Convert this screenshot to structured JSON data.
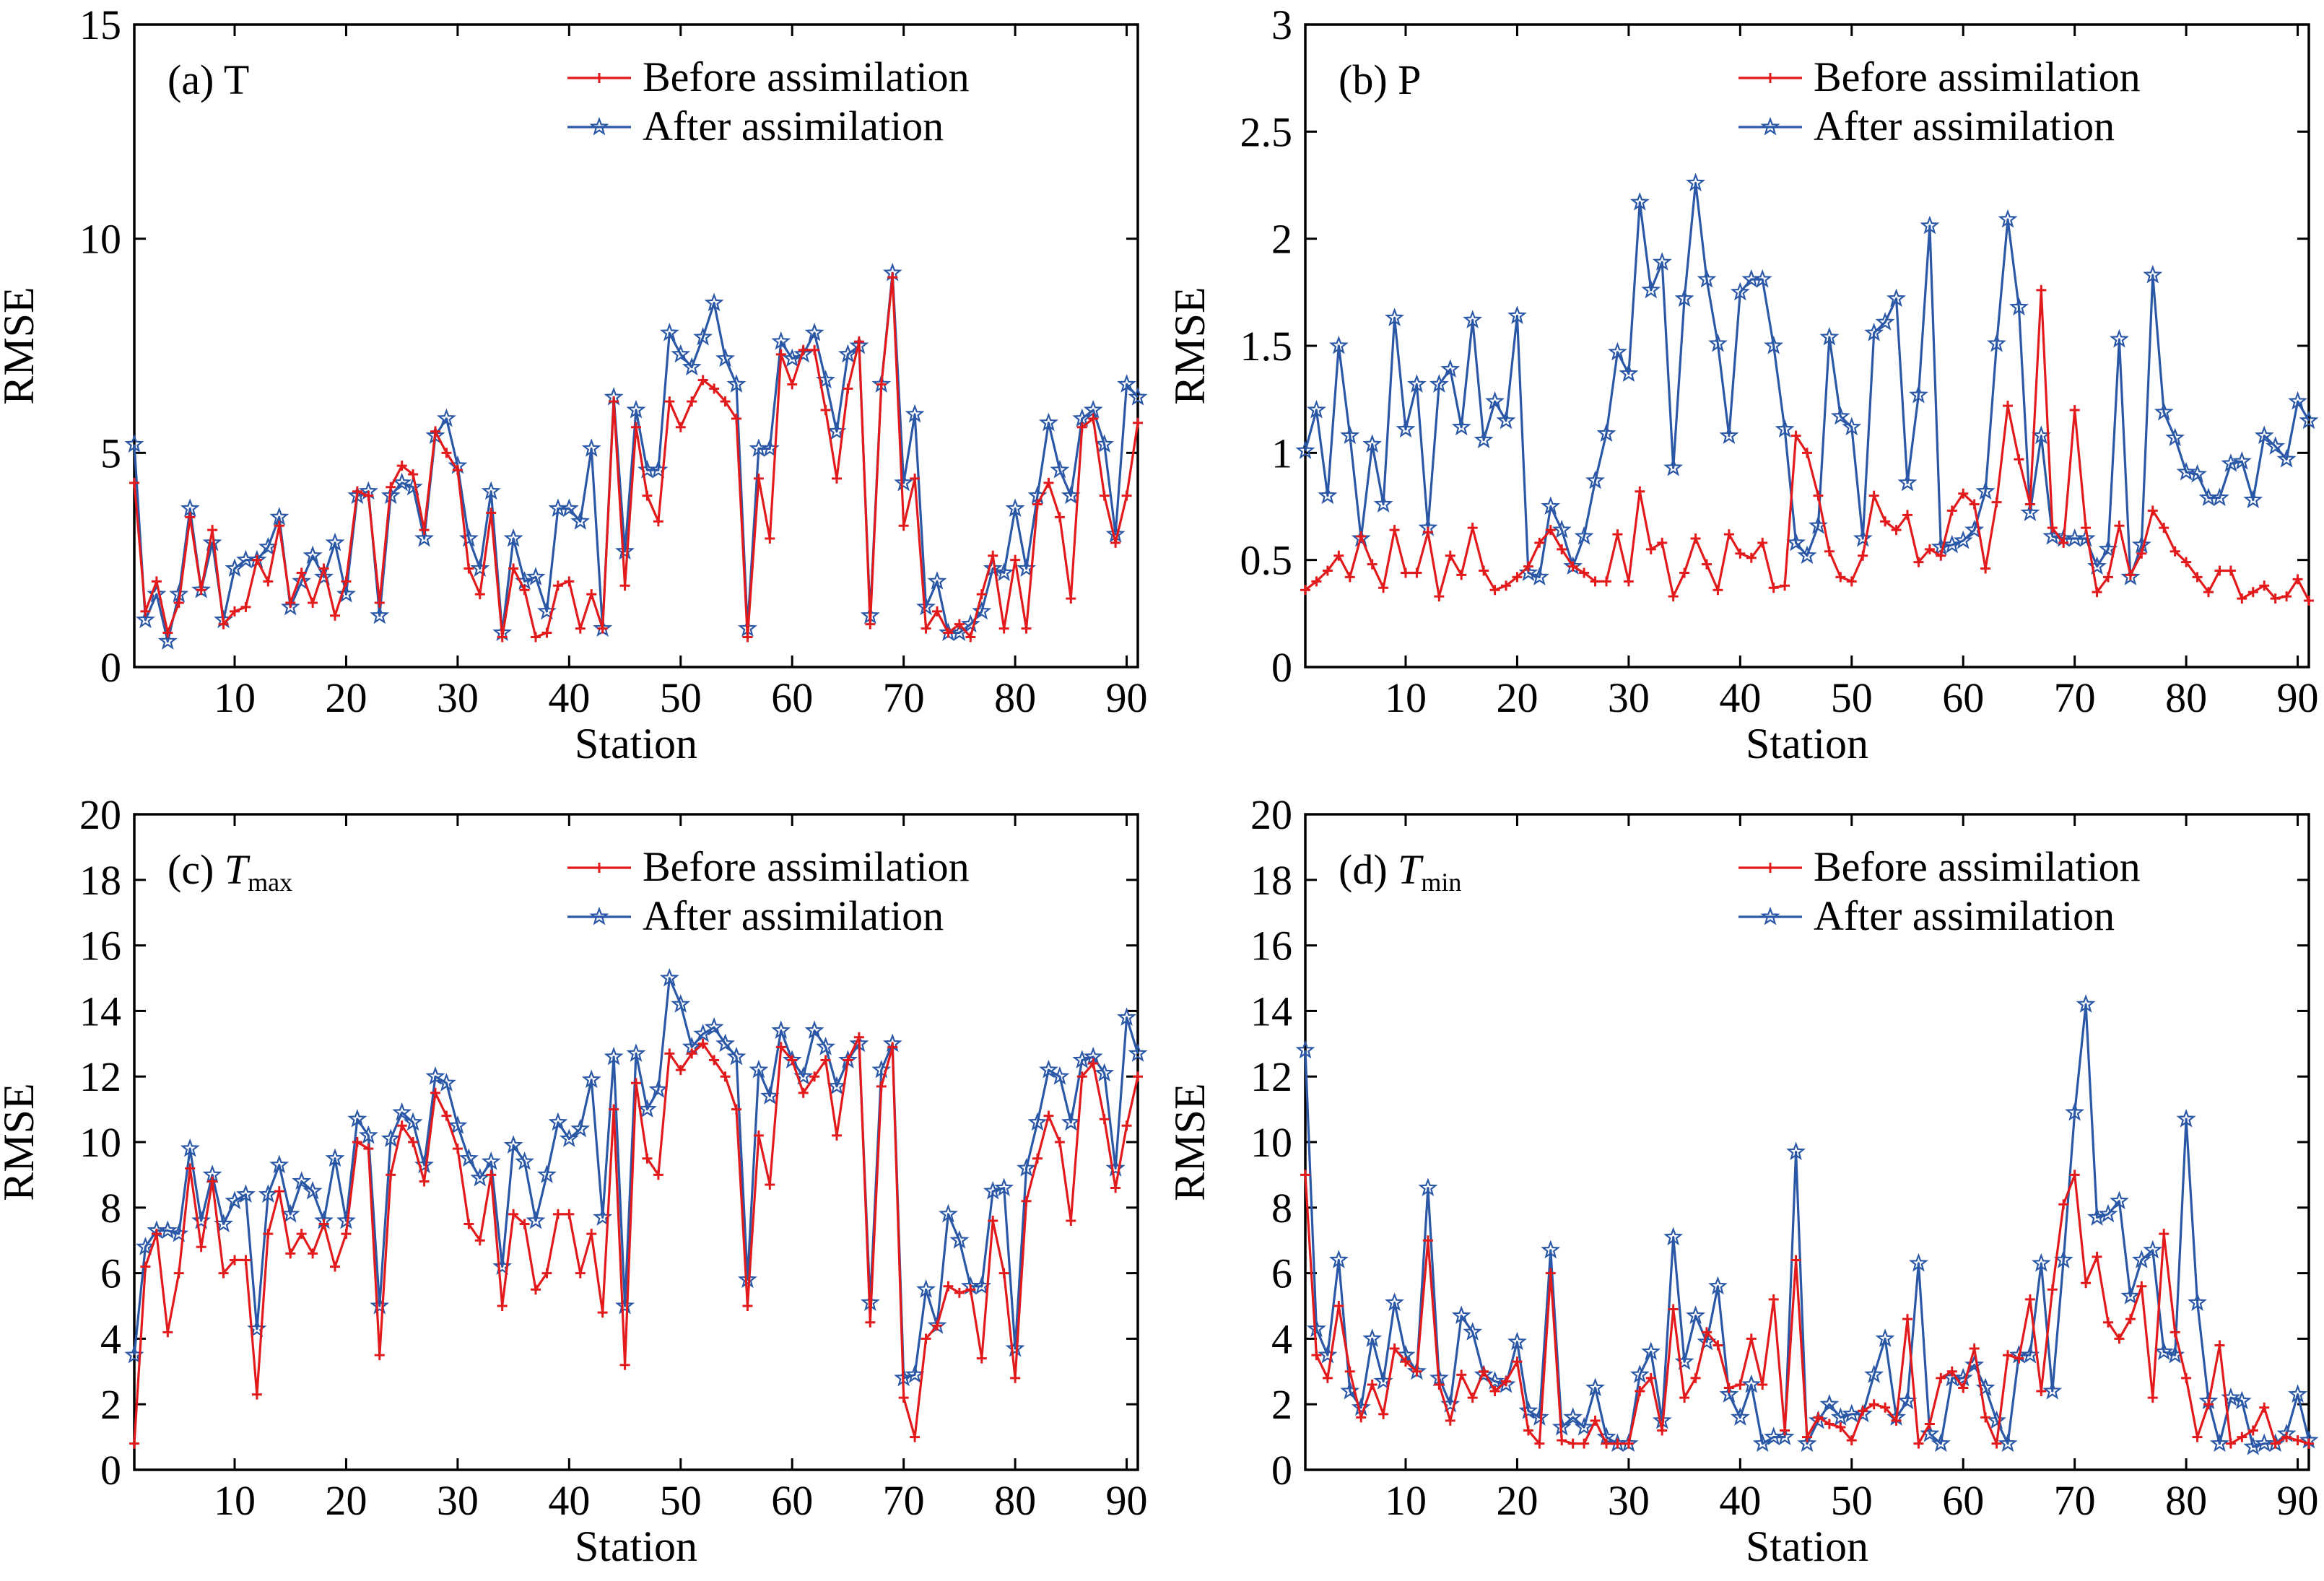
{
  "legend": {
    "before": "Before assimilation",
    "after": "After assimilation"
  },
  "colors": {
    "before": "#e31a1c",
    "after": "#2b58a6"
  },
  "chart_data": [
    {
      "type": "line",
      "panel_label": "(a) T",
      "panel_letter": "(a)",
      "panel_var": "T",
      "panel_sub": "",
      "xlabel": "Station",
      "ylabel": "RMSE",
      "xlim": [
        1,
        91
      ],
      "ylim": [
        0,
        15
      ],
      "x_ticks": [
        10,
        20,
        30,
        40,
        50,
        60,
        70,
        80,
        90
      ],
      "y_ticks": [
        0,
        5,
        10,
        15
      ],
      "y_tick_labels": [
        "0",
        "5",
        "10",
        "15"
      ],
      "legend_position": "top-right",
      "series": [
        {
          "name": "Before assimilation",
          "values": [
            4.3,
            1.3,
            2.0,
            0.8,
            1.5,
            3.5,
            1.8,
            3.2,
            1.0,
            1.3,
            1.4,
            2.5,
            2.0,
            3.3,
            1.5,
            2.2,
            1.5,
            2.3,
            1.2,
            2.0,
            4.1,
            4.0,
            1.5,
            4.2,
            4.7,
            4.5,
            3.2,
            5.5,
            5.0,
            4.6,
            2.3,
            1.7,
            3.6,
            0.7,
            2.3,
            1.8,
            0.7,
            0.8,
            1.9,
            2.0,
            0.9,
            1.7,
            0.9,
            6.2,
            1.9,
            5.6,
            4.0,
            3.4,
            6.2,
            5.6,
            6.2,
            6.7,
            6.5,
            6.2,
            5.8,
            0.7,
            4.4,
            3.0,
            7.3,
            6.6,
            7.4,
            7.4,
            6.0,
            4.4,
            6.5,
            7.6,
            1.0,
            6.6,
            9.1,
            3.3,
            4.4,
            0.9,
            1.3,
            0.8,
            1.0,
            0.7,
            1.7,
            2.6,
            0.9,
            2.5,
            0.9,
            3.8,
            4.3,
            3.5,
            1.6,
            5.6,
            5.8,
            4.0,
            2.9,
            4.0,
            5.7
          ]
        },
        {
          "name": "After assimilation",
          "values": [
            5.2,
            1.1,
            1.7,
            0.6,
            1.7,
            3.7,
            1.8,
            2.9,
            1.1,
            2.3,
            2.5,
            2.5,
            2.8,
            3.5,
            1.4,
            2.0,
            2.6,
            2.1,
            2.9,
            1.7,
            4.0,
            4.1,
            1.2,
            4.0,
            4.3,
            4.2,
            3.0,
            5.4,
            5.8,
            4.7,
            3.0,
            2.3,
            4.1,
            0.8,
            3.0,
            2.0,
            2.1,
            1.3,
            3.7,
            3.7,
            3.4,
            5.1,
            0.9,
            6.3,
            2.7,
            6.0,
            4.6,
            4.6,
            7.8,
            7.3,
            7.0,
            7.7,
            8.5,
            7.2,
            6.6,
            0.9,
            5.1,
            5.1,
            7.6,
            7.2,
            7.3,
            7.8,
            6.7,
            5.5,
            7.3,
            7.5,
            1.2,
            6.6,
            9.2,
            4.3,
            5.9,
            1.4,
            2.0,
            0.8,
            0.8,
            1.0,
            1.3,
            2.3,
            2.2,
            3.7,
            2.3,
            4.0,
            5.7,
            4.6,
            4.0,
            5.8,
            6.0,
            5.2,
            3.1,
            6.6,
            6.3
          ]
        }
      ]
    },
    {
      "type": "line",
      "panel_label": "(b) P",
      "panel_letter": "(b)",
      "panel_var": "P",
      "panel_sub": "",
      "xlabel": "Station",
      "ylabel": "RMSE",
      "xlim": [
        1,
        91
      ],
      "ylim": [
        0,
        3
      ],
      "x_ticks": [
        10,
        20,
        30,
        40,
        50,
        60,
        70,
        80,
        90
      ],
      "y_ticks": [
        0,
        0.5,
        1,
        1.5,
        2,
        2.5,
        3
      ],
      "y_tick_labels": [
        "0",
        "0.5",
        "1",
        "1.5",
        "2",
        "2.5",
        "3"
      ],
      "legend_position": "top-right",
      "series": [
        {
          "name": "Before assimilation",
          "values": [
            0.36,
            0.4,
            0.45,
            0.52,
            0.42,
            0.61,
            0.48,
            0.37,
            0.64,
            0.44,
            0.44,
            0.63,
            0.33,
            0.52,
            0.43,
            0.65,
            0.45,
            0.36,
            0.38,
            0.42,
            0.47,
            0.58,
            0.64,
            0.55,
            0.47,
            0.44,
            0.4,
            0.4,
            0.62,
            0.4,
            0.82,
            0.55,
            0.58,
            0.33,
            0.44,
            0.6,
            0.48,
            0.36,
            0.62,
            0.53,
            0.51,
            0.58,
            0.37,
            0.38,
            1.08,
            1.0,
            0.8,
            0.54,
            0.42,
            0.4,
            0.52,
            0.8,
            0.68,
            0.64,
            0.71,
            0.49,
            0.55,
            0.52,
            0.73,
            0.81,
            0.76,
            0.46,
            0.77,
            1.22,
            0.97,
            0.76,
            1.76,
            0.65,
            0.58,
            1.2,
            0.65,
            0.35,
            0.42,
            0.66,
            0.43,
            0.53,
            0.73,
            0.65,
            0.54,
            0.49,
            0.42,
            0.35,
            0.45,
            0.45,
            0.32,
            0.35,
            0.38,
            0.32,
            0.33,
            0.41,
            0.31
          ]
        },
        {
          "name": "After assimilation",
          "values": [
            1.01,
            1.2,
            0.8,
            1.5,
            1.08,
            0.6,
            1.04,
            0.76,
            1.63,
            1.11,
            1.32,
            0.65,
            1.32,
            1.39,
            1.12,
            1.62,
            1.06,
            1.24,
            1.15,
            1.64,
            0.44,
            0.42,
            0.75,
            0.64,
            0.47,
            0.61,
            0.87,
            1.09,
            1.47,
            1.37,
            2.17,
            1.76,
            1.89,
            0.93,
            1.72,
            2.26,
            1.81,
            1.51,
            1.08,
            1.75,
            1.81,
            1.81,
            1.5,
            1.11,
            0.58,
            0.52,
            0.66,
            1.54,
            1.17,
            1.12,
            0.6,
            1.56,
            1.61,
            1.72,
            0.86,
            1.27,
            2.06,
            0.56,
            0.57,
            0.59,
            0.64,
            0.82,
            1.51,
            2.09,
            1.68,
            0.72,
            1.08,
            0.61,
            0.6,
            0.6,
            0.6,
            0.47,
            0.55,
            1.53,
            0.42,
            0.57,
            1.83,
            1.19,
            1.07,
            0.91,
            0.9,
            0.79,
            0.79,
            0.95,
            0.96,
            0.78,
            1.08,
            1.03,
            0.97,
            1.24,
            1.15
          ]
        }
      ]
    },
    {
      "type": "line",
      "panel_label": "(c) Tmax",
      "panel_letter": "(c)",
      "panel_var": "T",
      "panel_sub": "max",
      "xlabel": "Station",
      "ylabel": "RMSE",
      "xlim": [
        1,
        91
      ],
      "ylim": [
        0,
        20
      ],
      "x_ticks": [
        10,
        20,
        30,
        40,
        50,
        60,
        70,
        80,
        90
      ],
      "y_ticks": [
        0,
        2,
        4,
        6,
        8,
        10,
        12,
        14,
        16,
        18,
        20
      ],
      "y_tick_labels": [
        "0",
        "2",
        "4",
        "6",
        "8",
        "10",
        "12",
        "14",
        "16",
        "18",
        "20"
      ],
      "legend_position": "top-right",
      "series": [
        {
          "name": "Before assimilation",
          "values": [
            0.8,
            6.2,
            7.2,
            4.2,
            6.0,
            9.2,
            6.8,
            8.8,
            6.0,
            6.4,
            6.4,
            2.3,
            7.2,
            8.5,
            6.6,
            7.2,
            6.6,
            7.5,
            6.2,
            7.2,
            10.0,
            9.8,
            3.5,
            9.0,
            10.5,
            10.0,
            8.8,
            11.5,
            10.8,
            9.8,
            7.5,
            7.0,
            9.0,
            5.0,
            7.8,
            7.5,
            5.5,
            6.0,
            7.8,
            7.8,
            6.0,
            7.2,
            4.8,
            11.0,
            3.2,
            11.8,
            9.5,
            9.0,
            12.7,
            12.2,
            12.7,
            13.0,
            12.5,
            12.0,
            11.0,
            5.0,
            10.2,
            8.7,
            12.9,
            12.5,
            11.5,
            12.0,
            12.5,
            10.2,
            12.5,
            13.2,
            4.5,
            11.7,
            12.9,
            2.2,
            1.0,
            4.0,
            4.4,
            5.6,
            5.4,
            5.5,
            3.4,
            7.6,
            6.0,
            2.8,
            8.2,
            9.5,
            10.8,
            10.0,
            7.6,
            12.0,
            12.4,
            10.7,
            8.6,
            10.5,
            12.0
          ]
        },
        {
          "name": "After assimilation",
          "values": [
            3.5,
            6.8,
            7.3,
            7.3,
            7.2,
            9.8,
            7.6,
            9.0,
            7.5,
            8.2,
            8.4,
            4.3,
            8.4,
            9.3,
            7.8,
            8.8,
            8.5,
            7.6,
            9.5,
            7.6,
            10.7,
            10.2,
            5.0,
            10.1,
            10.9,
            10.6,
            9.3,
            12.0,
            11.8,
            10.5,
            9.5,
            8.9,
            9.4,
            6.2,
            9.9,
            9.4,
            7.6,
            9.0,
            10.6,
            10.1,
            10.4,
            11.9,
            7.7,
            12.6,
            5.0,
            12.7,
            11.0,
            11.6,
            15.0,
            14.2,
            12.9,
            13.3,
            13.5,
            13.0,
            12.6,
            5.8,
            12.2,
            11.4,
            13.4,
            12.5,
            12.0,
            13.4,
            12.9,
            11.7,
            12.5,
            13.0,
            5.1,
            12.2,
            13.0,
            2.8,
            2.9,
            5.5,
            4.4,
            7.8,
            7.0,
            5.6,
            5.6,
            8.5,
            8.6,
            3.7,
            9.2,
            10.6,
            12.2,
            12.0,
            10.6,
            12.5,
            12.6,
            12.1,
            9.2,
            13.8,
            12.7
          ]
        }
      ]
    },
    {
      "type": "line",
      "panel_label": "(d) Tmin",
      "panel_letter": "(d)",
      "panel_var": "T",
      "panel_sub": "min",
      "xlabel": "Station",
      "ylabel": "RMSE",
      "xlim": [
        1,
        91
      ],
      "ylim": [
        0,
        20
      ],
      "x_ticks": [
        10,
        20,
        30,
        40,
        50,
        60,
        70,
        80,
        90
      ],
      "y_ticks": [
        0,
        2,
        4,
        6,
        8,
        10,
        12,
        14,
        16,
        18,
        20
      ],
      "y_tick_labels": [
        "0",
        "2",
        "4",
        "6",
        "8",
        "10",
        "12",
        "14",
        "16",
        "18",
        "20"
      ],
      "legend_position": "top-right",
      "series": [
        {
          "name": "Before assimilation",
          "values": [
            9.0,
            3.5,
            2.8,
            5.0,
            3.0,
            1.6,
            2.6,
            1.7,
            3.7,
            3.3,
            3.0,
            7.0,
            2.6,
            1.5,
            2.9,
            2.2,
            3.0,
            2.4,
            2.7,
            3.3,
            1.2,
            0.8,
            6.0,
            0.9,
            0.8,
            0.8,
            1.5,
            0.8,
            0.8,
            0.8,
            2.4,
            2.8,
            1.2,
            4.9,
            2.2,
            2.8,
            4.2,
            3.8,
            2.5,
            2.6,
            4.0,
            2.6,
            5.2,
            1.2,
            6.4,
            1.0,
            1.6,
            1.4,
            1.3,
            0.9,
            1.8,
            2.0,
            1.9,
            1.5,
            4.6,
            0.8,
            1.4,
            2.8,
            3.0,
            2.5,
            3.7,
            1.6,
            0.8,
            3.5,
            3.4,
            5.2,
            2.4,
            5.5,
            8.1,
            9.0,
            5.7,
            6.5,
            4.5,
            4.0,
            4.6,
            5.6,
            2.2,
            7.2,
            4.2,
            2.8,
            1.0,
            2.0,
            3.8,
            0.8,
            1.0,
            1.2,
            1.9,
            0.8,
            1.0,
            0.9,
            0.8
          ]
        },
        {
          "name": "After assimilation",
          "values": [
            12.8,
            4.3,
            3.5,
            6.4,
            2.4,
            1.9,
            4.0,
            2.7,
            5.1,
            3.5,
            3.0,
            8.6,
            2.8,
            2.0,
            4.7,
            4.2,
            2.9,
            2.7,
            2.6,
            3.9,
            1.8,
            1.6,
            6.7,
            1.3,
            1.6,
            1.3,
            2.5,
            1.0,
            0.8,
            0.8,
            2.9,
            3.6,
            1.5,
            7.1,
            3.3,
            4.7,
            3.9,
            5.6,
            2.3,
            1.6,
            2.6,
            0.8,
            1.0,
            1.0,
            9.7,
            0.8,
            1.5,
            2.0,
            1.6,
            1.7,
            1.7,
            2.9,
            4.0,
            1.6,
            2.1,
            6.3,
            1.1,
            0.8,
            2.8,
            2.8,
            3.2,
            2.5,
            1.5,
            0.8,
            3.5,
            3.5,
            6.3,
            2.4,
            6.4,
            10.9,
            14.2,
            7.7,
            7.8,
            8.2,
            5.3,
            6.4,
            6.7,
            3.6,
            3.5,
            10.7,
            5.1,
            2.1,
            0.8,
            2.2,
            2.1,
            0.7,
            0.8,
            0.8,
            1.1,
            2.3,
            0.9
          ]
        }
      ]
    }
  ]
}
